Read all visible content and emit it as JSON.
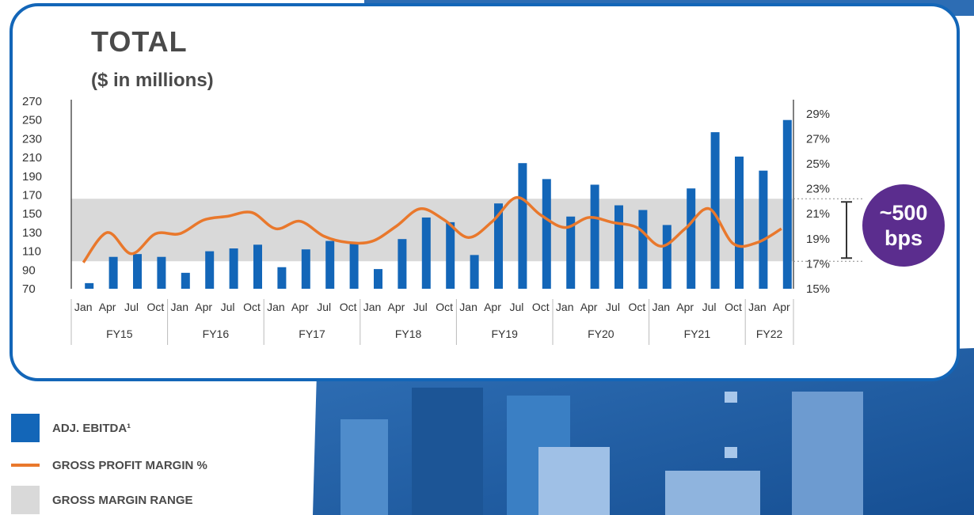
{
  "header": {
    "title": "TOTAL",
    "subtitle": "($ in millions)"
  },
  "badge": {
    "line1": "~500",
    "line2": "bps"
  },
  "legend": [
    {
      "label": "ADJ. EBITDA¹",
      "swatch": "bar"
    },
    {
      "label": "GROSS PROFIT MARGIN %",
      "swatch": "line"
    },
    {
      "label": "GROSS MARGIN RANGE",
      "swatch": "band"
    }
  ],
  "colors": {
    "bar": "#1366b8",
    "line": "#e9782c",
    "band": "#d9d9d9",
    "badge": "#5b2d8e",
    "frame": "#1366b8"
  },
  "chart_data": {
    "type": "bar",
    "quarters": [
      "Jan",
      "Apr",
      "Jul",
      "Oct",
      "Jan",
      "Apr",
      "Jul",
      "Oct",
      "Jan",
      "Apr",
      "Jul",
      "Oct",
      "Jan",
      "Apr",
      "Jul",
      "Oct",
      "Jan",
      "Apr",
      "Jul",
      "Oct",
      "Jan",
      "Apr",
      "Jul",
      "Oct",
      "Jan",
      "Apr",
      "Jul",
      "Oct",
      "Jan",
      "Apr"
    ],
    "fiscal_years": [
      {
        "label": "FY15",
        "span": 4
      },
      {
        "label": "FY16",
        "span": 4
      },
      {
        "label": "FY17",
        "span": 4
      },
      {
        "label": "FY18",
        "span": 4
      },
      {
        "label": "FY19",
        "span": 4
      },
      {
        "label": "FY20",
        "span": 4
      },
      {
        "label": "FY21",
        "span": 4
      },
      {
        "label": "FY22",
        "span": 2
      }
    ],
    "series": [
      {
        "name": "ADJ. EBITDA¹",
        "type": "bar",
        "axis": "left",
        "values": [
          76,
          104,
          107,
          104,
          87,
          110,
          113,
          117,
          93,
          112,
          121,
          118,
          91,
          123,
          146,
          141,
          106,
          161,
          204,
          187,
          147,
          181,
          159,
          154,
          138,
          177,
          237,
          211,
          196,
          250
        ]
      },
      {
        "name": "GROSS PROFIT MARGIN %",
        "type": "line",
        "axis": "right",
        "values": [
          17.1,
          19.5,
          17.8,
          19.4,
          19.4,
          20.5,
          20.8,
          21.1,
          19.8,
          20.4,
          19.2,
          18.7,
          18.8,
          20.0,
          21.4,
          20.5,
          19.1,
          20.4,
          22.3,
          20.9,
          19.9,
          20.7,
          20.3,
          19.9,
          18.4,
          19.8,
          21.4,
          18.6,
          18.7,
          19.8
        ]
      }
    ],
    "band": {
      "name": "GROSS MARGIN RANGE",
      "from": 17.2,
      "to": 22.2
    },
    "ylim_left": [
      70,
      270
    ],
    "yticks_left": [
      270,
      250,
      230,
      210,
      190,
      170,
      150,
      130,
      110,
      90,
      70
    ],
    "ylim_right": [
      15,
      30
    ],
    "yticks_right": [
      "29%",
      "27%",
      "25%",
      "23%",
      "21%",
      "19%",
      "17%",
      "15%"
    ],
    "range_marker": "~500 bps"
  }
}
